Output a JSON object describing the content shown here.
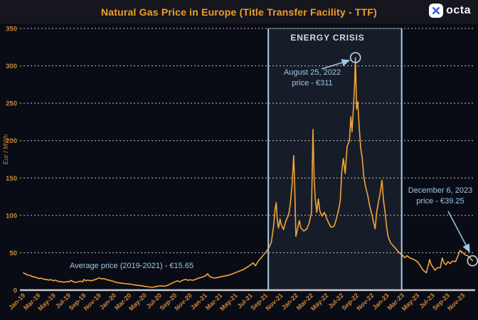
{
  "header": {
    "title": "Natural Gas Price in Europe (Title Transfer Facility - TTF)",
    "brand": "octa"
  },
  "chart_data": {
    "type": "line",
    "title": "Natural Gas Price in Europe (Title Transfer Facility - TTF)",
    "xlabel": "",
    "ylabel": "Eur / MWh",
    "ylim": [
      0,
      350
    ],
    "yticks": [
      0,
      50,
      100,
      150,
      200,
      250,
      300,
      350
    ],
    "grid": "horizontal-dashed",
    "legend": "none",
    "x_unit": "months since Jan-2019; ticks every 2 months",
    "x_tick_labels": [
      "Jan-19",
      "Mar-19",
      "May-19",
      "Jul-19",
      "Sep-19",
      "Nov-19",
      "Jan-20",
      "Mar-20",
      "May-20",
      "Jul-20",
      "Sep-20",
      "Nov-20",
      "Jan-21",
      "Mar-21",
      "May-21",
      "Jul-21",
      "Sep-21",
      "Nov-21",
      "Jan-22",
      "Mar-22",
      "May-22",
      "Jul-22",
      "Sep-22",
      "Nov-22",
      "Jan-23",
      "Mar-23",
      "May-23",
      "Jul-23",
      "Sep-23",
      "Nov-23"
    ],
    "series": [
      {
        "name": "TTF natural gas price (EUR/MWh)",
        "color": "#f3a438",
        "points": [
          [
            0,
            23
          ],
          [
            0.3,
            21.5
          ],
          [
            0.6,
            20
          ],
          [
            0.9,
            19.5
          ],
          [
            1.2,
            18
          ],
          [
            1.5,
            17.5
          ],
          [
            1.8,
            16.5
          ],
          [
            2.1,
            15.5
          ],
          [
            2.4,
            16
          ],
          [
            2.7,
            14.5
          ],
          [
            3.0,
            14.5
          ],
          [
            3.3,
            13.5
          ],
          [
            3.6,
            14
          ],
          [
            4.0,
            12.5
          ],
          [
            4.2,
            13.5
          ],
          [
            4.5,
            12
          ],
          [
            4.8,
            11.5
          ],
          [
            5.1,
            11
          ],
          [
            5.4,
            10.5
          ],
          [
            5.7,
            11.5
          ],
          [
            6.0,
            11
          ],
          [
            6.3,
            13
          ],
          [
            6.6,
            11
          ],
          [
            6.9,
            10.5
          ],
          [
            7.2,
            11
          ],
          [
            7.5,
            12
          ],
          [
            7.8,
            11
          ],
          [
            8.0,
            14.5
          ],
          [
            8.2,
            12.5
          ],
          [
            8.5,
            13.5
          ],
          [
            8.8,
            12.5
          ],
          [
            9.1,
            13
          ],
          [
            9.4,
            14
          ],
          [
            9.7,
            15
          ],
          [
            10.0,
            16.5
          ],
          [
            10.3,
            15
          ],
          [
            10.6,
            15.5
          ],
          [
            11.0,
            14
          ],
          [
            11.4,
            13
          ],
          [
            11.8,
            12
          ],
          [
            12.2,
            10.5
          ],
          [
            12.6,
            9.8
          ],
          [
            13.0,
            9.2
          ],
          [
            13.5,
            8.6
          ],
          [
            14.0,
            8.2
          ],
          [
            14.5,
            7.2
          ],
          [
            15.0,
            6.6
          ],
          [
            15.5,
            6
          ],
          [
            16.0,
            5
          ],
          [
            16.5,
            4.3
          ],
          [
            17.0,
            3.8
          ],
          [
            17.4,
            4.6
          ],
          [
            17.8,
            5.4
          ],
          [
            18.2,
            5.6
          ],
          [
            18.6,
            5.2
          ],
          [
            19.0,
            6.4
          ],
          [
            19.5,
            8.8
          ],
          [
            20.0,
            11.2
          ],
          [
            20.3,
            12.6
          ],
          [
            20.6,
            11
          ],
          [
            21.0,
            13.2
          ],
          [
            21.4,
            14.4
          ],
          [
            21.7,
            13.2
          ],
          [
            22.0,
            13.8
          ],
          [
            22.4,
            13.2
          ],
          [
            22.7,
            14.4
          ],
          [
            23.0,
            15.8
          ],
          [
            23.5,
            17
          ],
          [
            24.0,
            19
          ],
          [
            24.3,
            22
          ],
          [
            24.5,
            19
          ],
          [
            24.8,
            17
          ],
          [
            25.2,
            16.2
          ],
          [
            25.6,
            16.8
          ],
          [
            26.0,
            17.8
          ],
          [
            26.5,
            18.8
          ],
          [
            27.0,
            19.8
          ],
          [
            27.5,
            21.5
          ],
          [
            28.0,
            23.5
          ],
          [
            28.5,
            25.5
          ],
          [
            29.0,
            27.5
          ],
          [
            29.5,
            30.5
          ],
          [
            30.0,
            34
          ],
          [
            30.3,
            36.5
          ],
          [
            30.6,
            32.5
          ],
          [
            31.0,
            39
          ],
          [
            31.5,
            45
          ],
          [
            32.0,
            51
          ],
          [
            32.4,
            57
          ],
          [
            32.7,
            64
          ],
          [
            33.0,
            85
          ],
          [
            33.2,
            108
          ],
          [
            33.35,
            117
          ],
          [
            33.5,
            93
          ],
          [
            33.65,
            83
          ],
          [
            33.85,
            95
          ],
          [
            34.0,
            88
          ],
          [
            34.3,
            81
          ],
          [
            34.6,
            92
          ],
          [
            35.0,
            101
          ],
          [
            35.2,
            115
          ],
          [
            35.45,
            142
          ],
          [
            35.65,
            180
          ],
          [
            35.8,
            135
          ],
          [
            35.95,
            72
          ],
          [
            36.2,
            84
          ],
          [
            36.4,
            93
          ],
          [
            36.6,
            83
          ],
          [
            37.0,
            79
          ],
          [
            37.4,
            82
          ],
          [
            37.7,
            90
          ],
          [
            38.0,
            104
          ],
          [
            38.2,
            215
          ],
          [
            38.35,
            150
          ],
          [
            38.5,
            122
          ],
          [
            38.7,
            104
          ],
          [
            38.9,
            122
          ],
          [
            39.1,
            106
          ],
          [
            39.4,
            99
          ],
          [
            39.7,
            104
          ],
          [
            40.0,
            96
          ],
          [
            40.3,
            89
          ],
          [
            40.6,
            84
          ],
          [
            41.0,
            86
          ],
          [
            41.3,
            96
          ],
          [
            41.6,
            108
          ],
          [
            41.8,
            120
          ],
          [
            42.0,
            158
          ],
          [
            42.2,
            176
          ],
          [
            42.45,
            156
          ],
          [
            42.7,
            192
          ],
          [
            43.0,
            200
          ],
          [
            43.2,
            232
          ],
          [
            43.35,
            212
          ],
          [
            43.55,
            247
          ],
          [
            43.7,
            276
          ],
          [
            43.8,
            311
          ],
          [
            43.95,
            242
          ],
          [
            44.1,
            252
          ],
          [
            44.3,
            218
          ],
          [
            44.5,
            190
          ],
          [
            44.7,
            176
          ],
          [
            44.9,
            152
          ],
          [
            45.1,
            140
          ],
          [
            45.4,
            128
          ],
          [
            45.7,
            112
          ],
          [
            46.0,
            100
          ],
          [
            46.2,
            90
          ],
          [
            46.4,
            82
          ],
          [
            46.6,
            104
          ],
          [
            46.8,
            116
          ],
          [
            47.0,
            126
          ],
          [
            47.15,
            136
          ],
          [
            47.3,
            147
          ],
          [
            47.5,
            120
          ],
          [
            47.7,
            106
          ],
          [
            47.9,
            86
          ],
          [
            48.1,
            72
          ],
          [
            48.4,
            64
          ],
          [
            48.7,
            60
          ],
          [
            49.0,
            57
          ],
          [
            49.4,
            52
          ],
          [
            49.7,
            49
          ],
          [
            50.0,
            47
          ],
          [
            50.3,
            43.5
          ],
          [
            50.6,
            46
          ],
          [
            51.0,
            43
          ],
          [
            51.5,
            41
          ],
          [
            52.0,
            38
          ],
          [
            52.4,
            32
          ],
          [
            52.7,
            27
          ],
          [
            53.0,
            24.5
          ],
          [
            53.15,
            23
          ],
          [
            53.4,
            33
          ],
          [
            53.6,
            41
          ],
          [
            53.8,
            34
          ],
          [
            54.0,
            31
          ],
          [
            54.3,
            26.5
          ],
          [
            54.6,
            30
          ],
          [
            55.0,
            30
          ],
          [
            55.25,
            43
          ],
          [
            55.5,
            36
          ],
          [
            55.75,
            34
          ],
          [
            56.0,
            38
          ],
          [
            56.3,
            35.5
          ],
          [
            56.6,
            39
          ],
          [
            57.0,
            38
          ],
          [
            57.3,
            45
          ],
          [
            57.6,
            53
          ],
          [
            58.0,
            50
          ],
          [
            58.3,
            47
          ],
          [
            58.6,
            46
          ],
          [
            58.9,
            43.5
          ],
          [
            59.1,
            41
          ],
          [
            59.25,
            39.25
          ]
        ]
      }
    ],
    "highlight_region": {
      "label": "ENERGY CRISIS",
      "from_month": 32.3,
      "to_month": 49.9,
      "border_color": "#a7cddf"
    },
    "markers": [
      {
        "date": "August 25, 2022",
        "month": 43.8,
        "value": 311
      },
      {
        "date": "December 6, 2023",
        "month": 59.25,
        "value": 39.25
      }
    ],
    "annotations": {
      "energy_crisis": "ENERGY CRISIS",
      "peak_line1": "August 25, 2022",
      "peak_line2": "price - €311",
      "end_line1": "December  6, 2023",
      "end_line2": "price - €39.25",
      "average": "Average price (2019-2021) - €15.65"
    },
    "colors": {
      "background": "#0a0c15",
      "header_background": "#16161f",
      "title": "#ee9e2a",
      "axis_labels": "#cd883f",
      "line": "#f3a438",
      "annotation_text": "#9dc8e8",
      "crisis_border": "#a7cddf"
    }
  }
}
